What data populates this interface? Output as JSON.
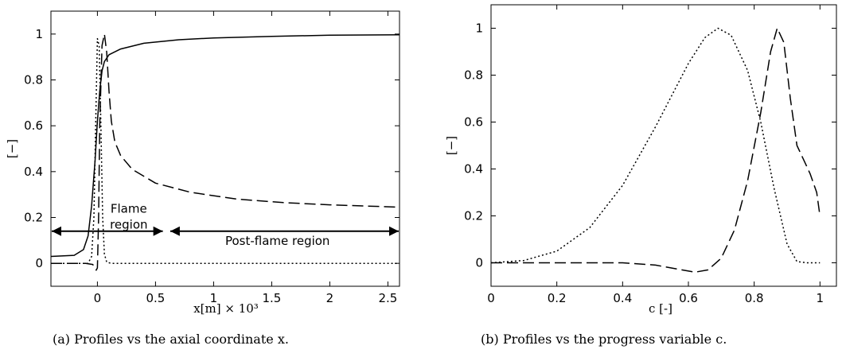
{
  "chart_data": [
    {
      "type": "line",
      "caption": "(a) Profiles vs the axial coordinate x.",
      "xlabel": "x[m] × 10³",
      "ylabel": "[−]",
      "xlim": [
        -0.4,
        2.6
      ],
      "ylim": [
        -0.1,
        1.1
      ],
      "xticks": [
        0,
        0.5,
        1,
        1.5,
        2,
        2.5
      ],
      "xticklabels": [
        "0",
        "0.5",
        "1",
        "1.5",
        "2",
        "2.5"
      ],
      "yticks": [
        0,
        0.2,
        0.4,
        0.6,
        0.8,
        1
      ],
      "yticklabels": [
        "0",
        "0.2",
        "0.4",
        "0.6",
        "0.8",
        "1"
      ],
      "grid": false,
      "series": [
        {
          "style": "solid",
          "x": [
            -0.4,
            -0.2,
            -0.12,
            -0.08,
            -0.05,
            -0.02,
            0.0,
            0.02,
            0.04,
            0.06,
            0.1,
            0.2,
            0.4,
            0.7,
            1.0,
            1.5,
            2.0,
            2.6
          ],
          "y": [
            0.03,
            0.035,
            0.06,
            0.12,
            0.25,
            0.45,
            0.62,
            0.75,
            0.84,
            0.88,
            0.91,
            0.935,
            0.96,
            0.975,
            0.983,
            0.99,
            0.995,
            0.997
          ]
        },
        {
          "style": "dashed",
          "x": [
            -0.4,
            -0.1,
            -0.04,
            -0.01,
            0.0,
            0.01,
            0.02,
            0.04,
            0.06,
            0.08,
            0.1,
            0.12,
            0.15,
            0.2,
            0.3,
            0.5,
            0.8,
            1.2,
            1.6,
            2.0,
            2.6
          ],
          "y": [
            0.0,
            0.0,
            -0.005,
            -0.03,
            -0.02,
            0.2,
            0.6,
            0.95,
            1.0,
            0.92,
            0.75,
            0.62,
            0.53,
            0.47,
            0.41,
            0.35,
            0.31,
            0.28,
            0.265,
            0.255,
            0.245
          ]
        },
        {
          "style": "dotted",
          "x": [
            -0.4,
            -0.08,
            -0.05,
            -0.03,
            -0.015,
            0.0,
            0.015,
            0.03,
            0.045,
            0.06,
            0.08,
            0.12,
            2.6
          ],
          "y": [
            0.0,
            0.0,
            0.03,
            0.2,
            0.6,
            0.98,
            0.95,
            0.6,
            0.2,
            0.04,
            0.005,
            0.0,
            0.0
          ]
        }
      ],
      "annotations": [
        {
          "text_lines": [
            "Flame",
            "region"
          ],
          "x": 0.27,
          "y": 0.22,
          "span": [
            -0.4,
            0.57
          ]
        },
        {
          "text_lines": [
            "Post-flame region"
          ],
          "x": 1.55,
          "y": 0.08,
          "span": [
            0.62,
            2.6
          ]
        }
      ]
    },
    {
      "type": "line",
      "caption": "(b) Profiles vs the progress variable c.",
      "xlabel": "c [-]",
      "ylabel": "[−]",
      "xlim": [
        0,
        1.05
      ],
      "ylim": [
        -0.1,
        1.1
      ],
      "xticks": [
        0,
        0.2,
        0.4,
        0.6,
        0.8,
        1
      ],
      "xticklabels": [
        "0",
        "0.2",
        "0.4",
        "0.6",
        "0.8",
        "1"
      ],
      "yticks": [
        0,
        0.2,
        0.4,
        0.6,
        0.8,
        1
      ],
      "yticklabels": [
        "0",
        "0.2",
        "0.4",
        "0.6",
        "0.8",
        "1"
      ],
      "grid": false,
      "series": [
        {
          "style": "dotted",
          "x": [
            0.0,
            0.1,
            0.2,
            0.3,
            0.4,
            0.5,
            0.6,
            0.65,
            0.69,
            0.73,
            0.78,
            0.82,
            0.86,
            0.9,
            0.93,
            0.96,
            1.0
          ],
          "y": [
            0.0,
            0.01,
            0.05,
            0.15,
            0.33,
            0.58,
            0.85,
            0.96,
            1.0,
            0.97,
            0.82,
            0.6,
            0.32,
            0.08,
            0.005,
            0.0,
            0.0
          ]
        },
        {
          "style": "dashed",
          "x": [
            0.0,
            0.2,
            0.4,
            0.5,
            0.58,
            0.62,
            0.66,
            0.7,
            0.74,
            0.78,
            0.82,
            0.85,
            0.87,
            0.89,
            0.91,
            0.93,
            0.95,
            0.97,
            0.99,
            1.0
          ],
          "y": [
            0.0,
            0.0,
            0.0,
            -0.01,
            -0.03,
            -0.04,
            -0.03,
            0.02,
            0.14,
            0.35,
            0.64,
            0.9,
            1.0,
            0.94,
            0.7,
            0.5,
            0.44,
            0.38,
            0.3,
            0.2
          ]
        }
      ]
    }
  ]
}
